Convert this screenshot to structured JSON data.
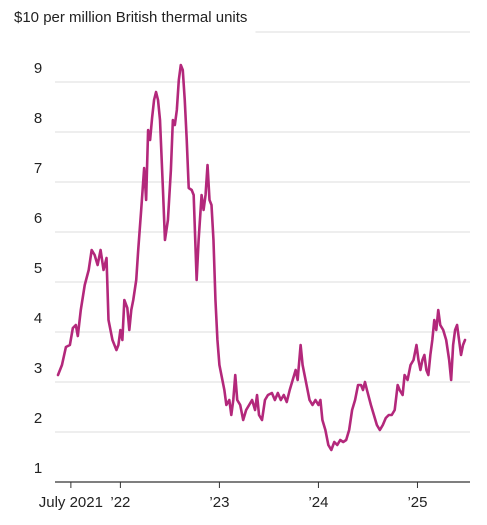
{
  "chart_data": {
    "type": "line",
    "x": [
      2021.37,
      2021.41,
      2021.45,
      2021.49,
      2021.52,
      2021.55,
      2021.57,
      2021.6,
      2021.64,
      2021.68,
      2021.71,
      2021.74,
      2021.77,
      2021.8,
      2021.83,
      2021.86,
      2021.88,
      2021.92,
      2021.96,
      2021.98,
      2022,
      2022.02,
      2022.04,
      2022.07,
      2022.09,
      2022.11,
      2022.13,
      2022.16,
      2022.18,
      2022.21,
      2022.24,
      2022.26,
      2022.28,
      2022.3,
      2022.32,
      2022.34,
      2022.36,
      2022.38,
      2022.4,
      2022.43,
      2022.45,
      2022.48,
      2022.51,
      2022.53,
      2022.55,
      2022.57,
      2022.59,
      2022.61,
      2022.63,
      2022.65,
      2022.67,
      2022.69,
      2022.72,
      2022.74,
      2022.77,
      2022.79,
      2022.82,
      2022.84,
      2022.86,
      2022.88,
      2022.9,
      2022.92,
      2022.94,
      2022.96,
      2022.98,
      2023,
      2023.03,
      2023.05,
      2023.07,
      2023.1,
      2023.12,
      2023.14,
      2023.16,
      2023.18,
      2023.21,
      2023.24,
      2023.27,
      2023.3,
      2023.33,
      2023.36,
      2023.38,
      2023.4,
      2023.43,
      2023.46,
      2023.49,
      2023.53,
      2023.56,
      2023.59,
      2023.62,
      2023.65,
      2023.68,
      2023.71,
      2023.74,
      2023.77,
      2023.79,
      2023.82,
      2023.84,
      2023.86,
      2023.88,
      2023.91,
      2023.94,
      2023.97,
      2024,
      2024.02,
      2024.04,
      2024.07,
      2024.1,
      2024.13,
      2024.16,
      2024.19,
      2024.22,
      2024.25,
      2024.28,
      2024.31,
      2024.34,
      2024.37,
      2024.4,
      2024.43,
      2024.45,
      2024.47,
      2024.49,
      2024.53,
      2024.56,
      2024.59,
      2024.62,
      2024.65,
      2024.68,
      2024.71,
      2024.74,
      2024.77,
      2024.8,
      2024.82,
      2024.85,
      2024.87,
      2024.9,
      2024.93,
      2024.96,
      2024.99,
      2025.01,
      2025.03,
      2025.05,
      2025.07,
      2025.09,
      2025.11,
      2025.13,
      2025.15,
      2025.17,
      2025.19,
      2025.21,
      2025.23,
      2025.26,
      2025.29,
      2025.32,
      2025.34,
      2025.36,
      2025.38,
      2025.4,
      2025.42,
      2025.44,
      2025.46,
      2025.48
    ],
    "series": [
      {
        "color": "#b3287b",
        "values": [
          3.14,
          3.34,
          3.7,
          3.74,
          4.08,
          4.14,
          3.92,
          4.44,
          4.94,
          5.24,
          5.64,
          5.54,
          5.34,
          5.64,
          5.24,
          5.48,
          4.24,
          3.84,
          3.64,
          3.74,
          4.04,
          3.84,
          4.64,
          4.48,
          4.04,
          4.44,
          4.64,
          5.04,
          5.64,
          6.44,
          7.28,
          6.64,
          8.04,
          7.84,
          8.28,
          8.64,
          8.8,
          8.64,
          8.24,
          6.84,
          5.84,
          6.24,
          7.24,
          8.24,
          8.14,
          8.44,
          9.04,
          9.34,
          9.24,
          8.64,
          7.84,
          6.88,
          6.84,
          6.74,
          5.04,
          5.84,
          6.74,
          6.44,
          6.74,
          7.34,
          6.64,
          6.54,
          5.84,
          4.64,
          3.84,
          3.34,
          3.04,
          2.84,
          2.54,
          2.64,
          2.34,
          2.64,
          3.14,
          2.64,
          2.54,
          2.24,
          2.44,
          2.54,
          2.64,
          2.44,
          2.74,
          2.34,
          2.24,
          2.64,
          2.74,
          2.78,
          2.64,
          2.78,
          2.64,
          2.74,
          2.6,
          2.84,
          3.04,
          3.24,
          3.04,
          3.74,
          3.34,
          3.14,
          2.94,
          2.64,
          2.54,
          2.64,
          2.54,
          2.64,
          2.24,
          2.04,
          1.74,
          1.64,
          1.8,
          1.74,
          1.84,
          1.8,
          1.84,
          2.04,
          2.44,
          2.64,
          2.94,
          2.94,
          2.84,
          3.0,
          2.84,
          2.54,
          2.34,
          2.14,
          2.04,
          2.14,
          2.28,
          2.34,
          2.34,
          2.44,
          2.94,
          2.84,
          2.74,
          3.14,
          3.04,
          3.34,
          3.44,
          3.74,
          3.44,
          3.24,
          3.44,
          3.54,
          3.24,
          3.14,
          3.54,
          3.84,
          4.24,
          4.04,
          4.44,
          4.14,
          4.04,
          3.84,
          3.44,
          3.04,
          3.74,
          4.04,
          4.14,
          3.84,
          3.54,
          3.74,
          3.84
        ]
      }
    ],
    "xlim": [
      2021.37,
      2025.48
    ],
    "xticks": [
      {
        "value": 2021.5,
        "label": "July 2021"
      },
      {
        "value": 2022,
        "label": "’22"
      },
      {
        "value": 2023,
        "label": "’23"
      },
      {
        "value": 2024,
        "label": "’24"
      },
      {
        "value": 2025,
        "label": "’25"
      }
    ],
    "ylim": [
      1,
      10
    ],
    "yticks": [
      1,
      2,
      3,
      4,
      5,
      6,
      7,
      8,
      9,
      {
        "value": 10,
        "label": "$10 per million British thermal units"
      }
    ],
    "grid": true
  }
}
